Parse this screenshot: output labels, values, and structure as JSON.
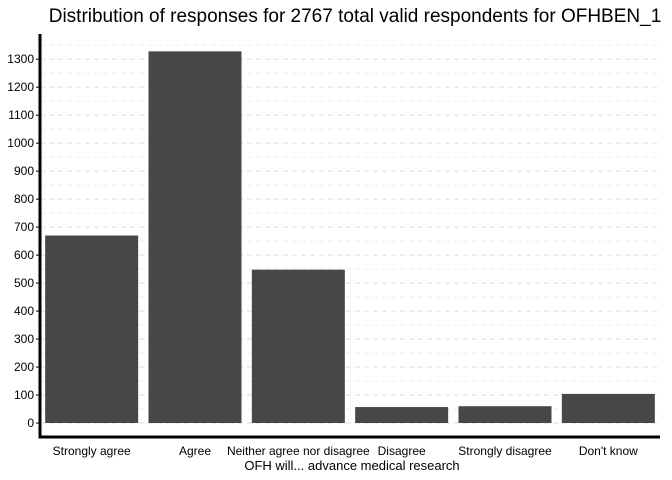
{
  "chart_data": {
    "type": "bar",
    "title": "Distribution of responses for 2767 total valid respondents for OFHBEN_1",
    "xlabel": "OFH will... advance medical research",
    "ylabel": "",
    "categories": [
      "Strongly agree",
      "Agree",
      "Neither agree nor disagree",
      "Disagree",
      "Strongly disagree",
      "Don't know"
    ],
    "values": [
      670,
      1328,
      548,
      57,
      60,
      104
    ],
    "ylim": [
      -50,
      1390
    ],
    "y_ticks": [
      0,
      100,
      200,
      300,
      400,
      500,
      600,
      700,
      800,
      900,
      1000,
      1100,
      1200,
      1300
    ],
    "y_tick_labels": [
      "0",
      "100",
      "200",
      "300",
      "400",
      "500",
      "600",
      "700",
      "800",
      "900",
      "1000",
      "1100",
      "1200",
      "1300"
    ],
    "grid": true,
    "legend": "none",
    "bar_color": "#474747",
    "grid_color": "#dddddd"
  }
}
